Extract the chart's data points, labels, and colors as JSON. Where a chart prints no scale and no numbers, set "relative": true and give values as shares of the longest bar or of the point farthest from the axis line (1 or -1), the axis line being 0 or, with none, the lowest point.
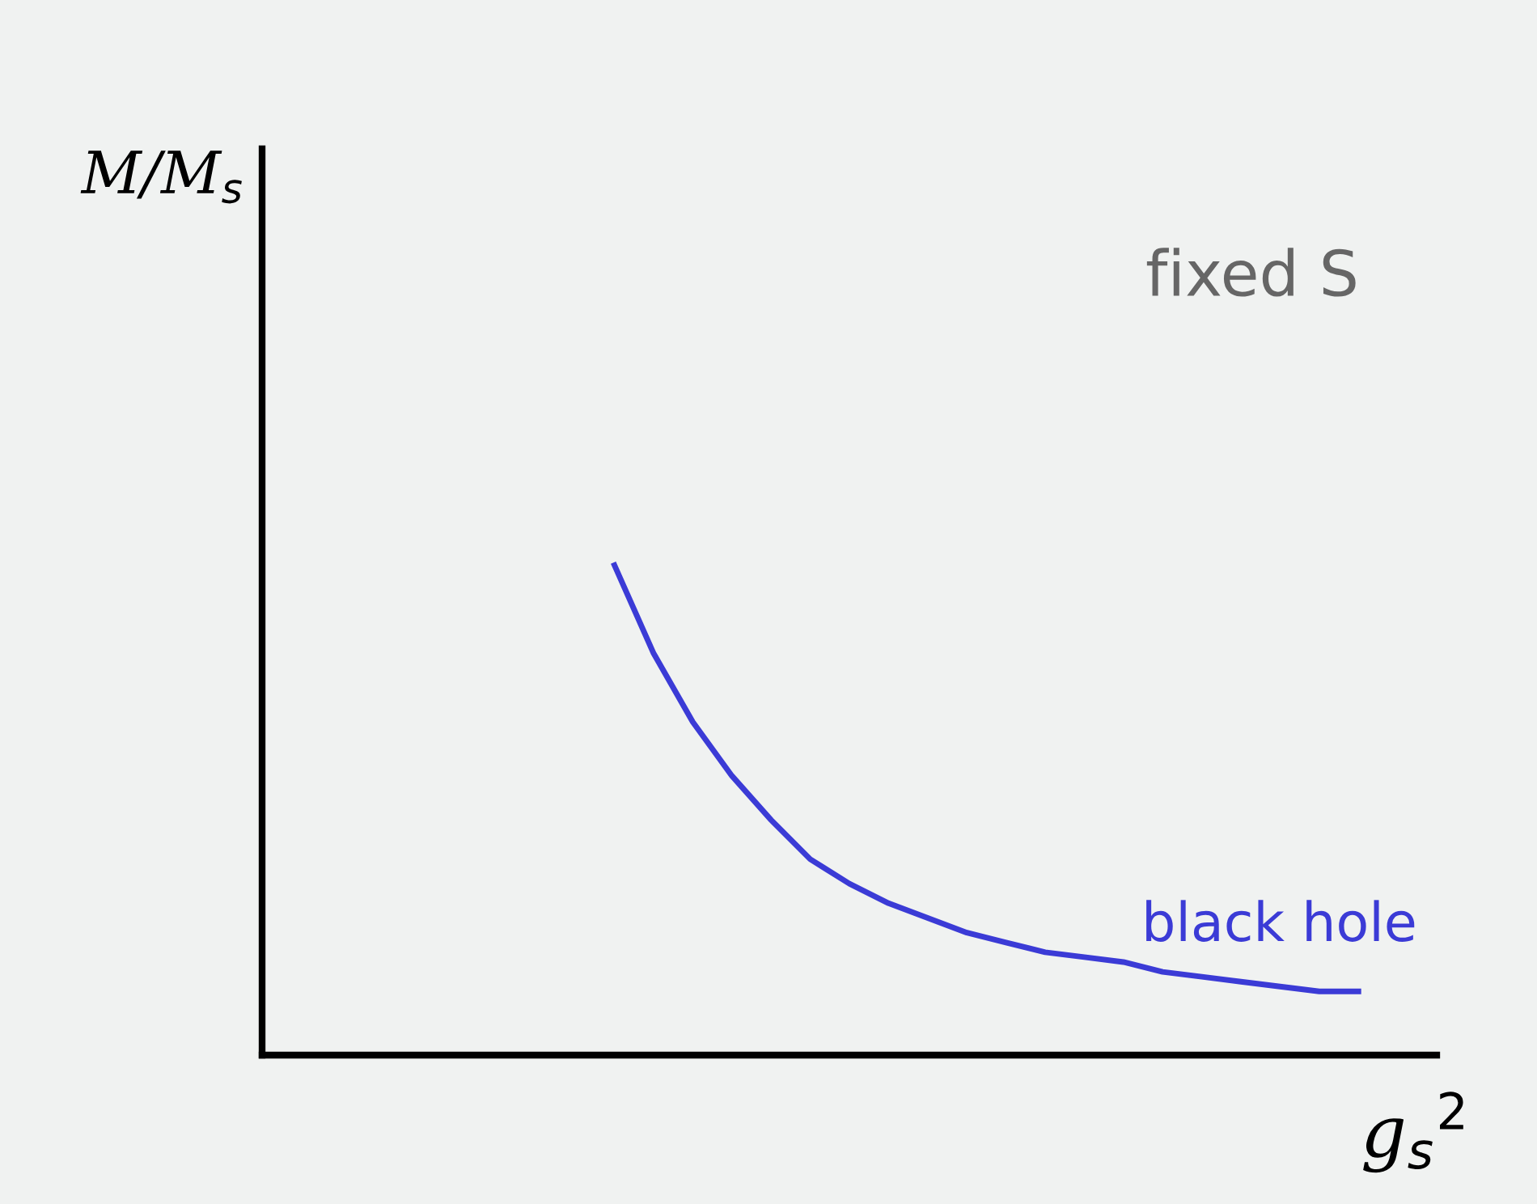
{
  "chart_data": {
    "type": "line",
    "relative": true,
    "xlabel": "g$_{s}$$^{2}$",
    "annotations": [
      "fixed S",
      "M/M$_{s}$"
    ],
    "categories": [
      null,
      null,
      null,
      null,
      null,
      null,
      null,
      null,
      null,
      null,
      null,
      null,
      null,
      null,
      null,
      null,
      null,
      null,
      null,
      null,
      null,
      null,
      null,
      null,
      null,
      null,
      null,
      null,
      null,
      null,
      null
    ],
    "series": [
      {
        "name": "black hole",
        "color": "#3b3bd6",
        "values": [
          null,
          null,
          null,
          null,
          null,
          null,
          null,
          null,
          null,
          1,
          0.82,
          0.68,
          0.57,
          0.48,
          0.4,
          0.35,
          0.31,
          0.28,
          0.25,
          0.23,
          0.21,
          0.2,
          0.19,
          0.17,
          0.16,
          0.15,
          0.14,
          0.13,
          0.13,
          null,
          null
        ]
      }
    ],
    "grid": false,
    "legend": false,
    "marker": "none",
    "line_style": "solid"
  }
}
